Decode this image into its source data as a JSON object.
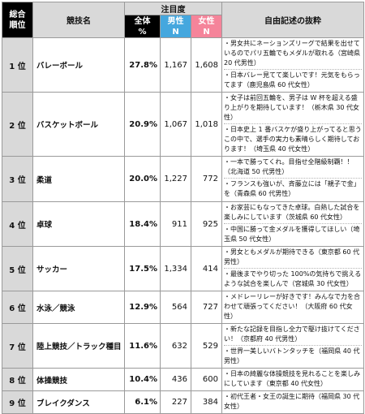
{
  "header": {
    "rank_label": "総合\n順位",
    "sport_label": "競技名",
    "attention_label": "注目度",
    "total_label": "全体\n%",
    "male_label": "男性\nN",
    "female_label": "女性\nN",
    "comments_label": "自由記述の抜粋"
  },
  "rows": [
    {
      "rank": "1 位",
      "sport": "バレーボール",
      "pct": "27.8%",
      "male": "1,167",
      "female": "1,608",
      "comments": [
        "・男女共にネーションズリーグで結果を出せているのでパリ五輪でもメダルが取れる（宮崎県 20 代男性）",
        "・日本バレー見てて楽しいです！元気をもらってます（鹿児島県 60 代女性）"
      ]
    },
    {
      "rank": "2 位",
      "sport": "バスケットボール",
      "pct": "20.9%",
      "male": "1,067",
      "female": "1,018",
      "comments": [
        "・女子は前回五輪を、男子は W 杯を超える盛り上がりを期待しています！（栃木県 30 代女性）",
        "・日本史上 1 番バスケが盛り上がってると思うこの中で、選手の実力も素晴らしく期待しております！（埼玉県 40 代女性）"
      ]
    },
    {
      "rank": "3 位",
      "sport": "柔道",
      "pct": "20.0%",
      "male": "1,227",
      "female": "772",
      "comments": [
        "・一本で勝ってくれ。目指せ全階級制覇！！（北海道 50 代男性）",
        "・フランスも強いが、斉藤立には「親子で金」を（青森県 60 代男性）"
      ]
    },
    {
      "rank": "4 位",
      "sport": "卓球",
      "pct": "18.4%",
      "male": "911",
      "female": "925",
      "comments": [
        "・お家芸にもなってきた卓球。白熱した試合を楽しみにしています（茨城県 60 代女性）",
        "・中国に勝って金メダルを獲得してほしい（埼玉県 50 代女性）"
      ]
    },
    {
      "rank": "5 位",
      "sport": "サッカー",
      "pct": "17.5%",
      "male": "1,334",
      "female": "414",
      "comments": [
        "・男女ともメダルが期待できる（東京都 60 代男性）",
        "・最後までやり切った 100%の気持ちで挑えるような試合を楽しんで（宮城県 30 代女性）"
      ]
    },
    {
      "rank": "6 位",
      "sport": "水泳／競泳",
      "pct": "12.9%",
      "male": "564",
      "female": "727",
      "comments": [
        "・メドレーリレーが好きです！みんなで力を合わせて頑張ってください！（大阪府 60 代女性）"
      ]
    },
    {
      "rank": "7 位",
      "sport": "陸上競技／トラック種目",
      "pct": "11.6%",
      "male": "632",
      "female": "529",
      "comments": [
        "・新たな記録を目指し全力で駆け抜けてください！（京都府 40 代男性）",
        "・世界一美しいバトンタッチを（福岡県 40 代男性）"
      ]
    },
    {
      "rank": "8 位",
      "sport": "体操競技",
      "pct": "10.4%",
      "male": "436",
      "female": "600",
      "comments": [
        "・日本の綺麗な体操競技を見れることを楽しみにしています（東京都 40 代女性）"
      ]
    },
    {
      "rank": "9 位",
      "sport": "ブレイクダンス",
      "pct": "6.1%",
      "male": "227",
      "female": "384",
      "comments": [
        "・初代王者・女王の誕生に期待（福岡県 30 代女性）"
      ]
    }
  ]
}
